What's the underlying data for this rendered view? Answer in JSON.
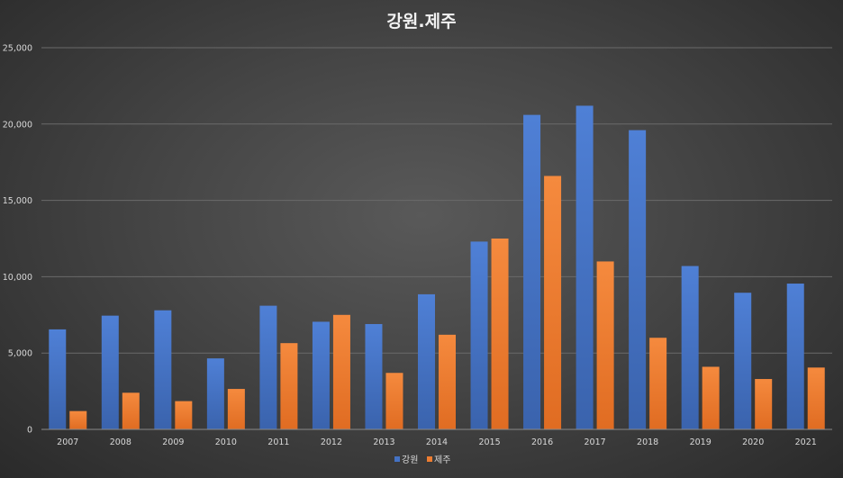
{
  "chart_data": {
    "type": "bar",
    "title": "강원.제주",
    "xlabel": "",
    "ylabel": "",
    "categories": [
      "2007",
      "2008",
      "2009",
      "2010",
      "2011",
      "2012",
      "2013",
      "2014",
      "2015",
      "2016",
      "2017",
      "2018",
      "2019",
      "2020",
      "2021"
    ],
    "series": [
      {
        "name": "강원",
        "color": "#4472c4",
        "values": [
          6550,
          7450,
          7800,
          4650,
          8100,
          7050,
          6900,
          8850,
          12300,
          20600,
          21200,
          19600,
          10700,
          8950,
          9550
        ]
      },
      {
        "name": "제주",
        "color": "#ed7d31",
        "values": [
          1200,
          2400,
          1850,
          2650,
          5650,
          7500,
          3700,
          6200,
          12500,
          16600,
          11000,
          6000,
          4100,
          3300,
          4050
        ]
      }
    ],
    "ylim": [
      0,
      25000
    ],
    "yticks": [
      "0",
      "5,000",
      "10,000",
      "15,000",
      "20,000",
      "25,000"
    ],
    "ytick_values": [
      0,
      5000,
      10000,
      15000,
      20000,
      25000
    ],
    "grid": true,
    "legend": "bottom"
  }
}
